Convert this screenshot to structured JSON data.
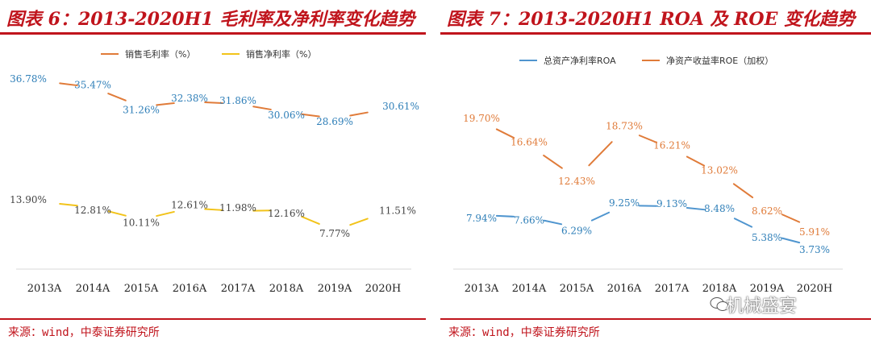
{
  "panels": [
    {
      "title": "图表 6：2013-2020H1 毛利率及净利率变化趋势",
      "source": "来源：wind，中泰证券研究所"
    },
    {
      "title": "图表 7：2013-2020H1 ROA 及 ROE 变化趋势",
      "source": "来源：wind，中泰证券研究所"
    }
  ],
  "watermark": "机械盛宴",
  "colors": {
    "accent": "#c0141c",
    "orange": "#e07b39",
    "yellow": "#f2c31a",
    "blue": "#4f95cf",
    "blue_label": "#2f7fb8",
    "orange_label": "#e07b39"
  },
  "chart_data": [
    {
      "type": "line",
      "categories": [
        "2013A",
        "2014A",
        "2015A",
        "2016A",
        "2017A",
        "2018A",
        "2019A",
        "2020H"
      ],
      "series": [
        {
          "name": "销售毛利率（%）",
          "values": [
            36.78,
            35.47,
            31.26,
            32.38,
            31.86,
            30.06,
            28.69,
            30.61
          ],
          "labels": [
            "36.78%",
            "35.47%",
            "31.26%",
            "32.38%",
            "31.86%",
            "30.06%",
            "28.69%",
            "30.61%"
          ],
          "color": "#e07b39",
          "label_color": "#2f7fb8"
        },
        {
          "name": "销售净利率（%）",
          "values": [
            13.9,
            12.81,
            10.11,
            12.61,
            11.98,
            12.16,
            7.77,
            11.51
          ],
          "labels": [
            "13.90%",
            "12.81%",
            "10.11%",
            "12.61%",
            "11.98%",
            "12.16%",
            "7.77%",
            "11.51%"
          ],
          "color": "#f2c31a",
          "label_color": "#444444"
        }
      ]
    },
    {
      "type": "line",
      "categories": [
        "2013A",
        "2014A",
        "2015A",
        "2016A",
        "2017A",
        "2018A",
        "2019A",
        "2020H"
      ],
      "series": [
        {
          "name": "总资产净利率ROA",
          "values": [
            7.94,
            7.66,
            6.29,
            9.25,
            9.13,
            8.48,
            5.38,
            3.73
          ],
          "labels": [
            "7.94%",
            "7.66%",
            "6.29%",
            "9.25%",
            "9.13%",
            "8.48%",
            "5.38%",
            "3.73%"
          ],
          "color": "#4f95cf",
          "label_color": "#2f7fb8"
        },
        {
          "name": "净资产收益率ROE（加权）",
          "values": [
            19.7,
            16.64,
            12.43,
            18.73,
            16.21,
            13.02,
            8.62,
            5.91
          ],
          "labels": [
            "19.70%",
            "16.64%",
            "12.43%",
            "18.73%",
            "16.21%",
            "13.02%",
            "8.62%",
            "5.91%"
          ],
          "color": "#e07b39",
          "label_color": "#e07b39"
        }
      ]
    }
  ]
}
